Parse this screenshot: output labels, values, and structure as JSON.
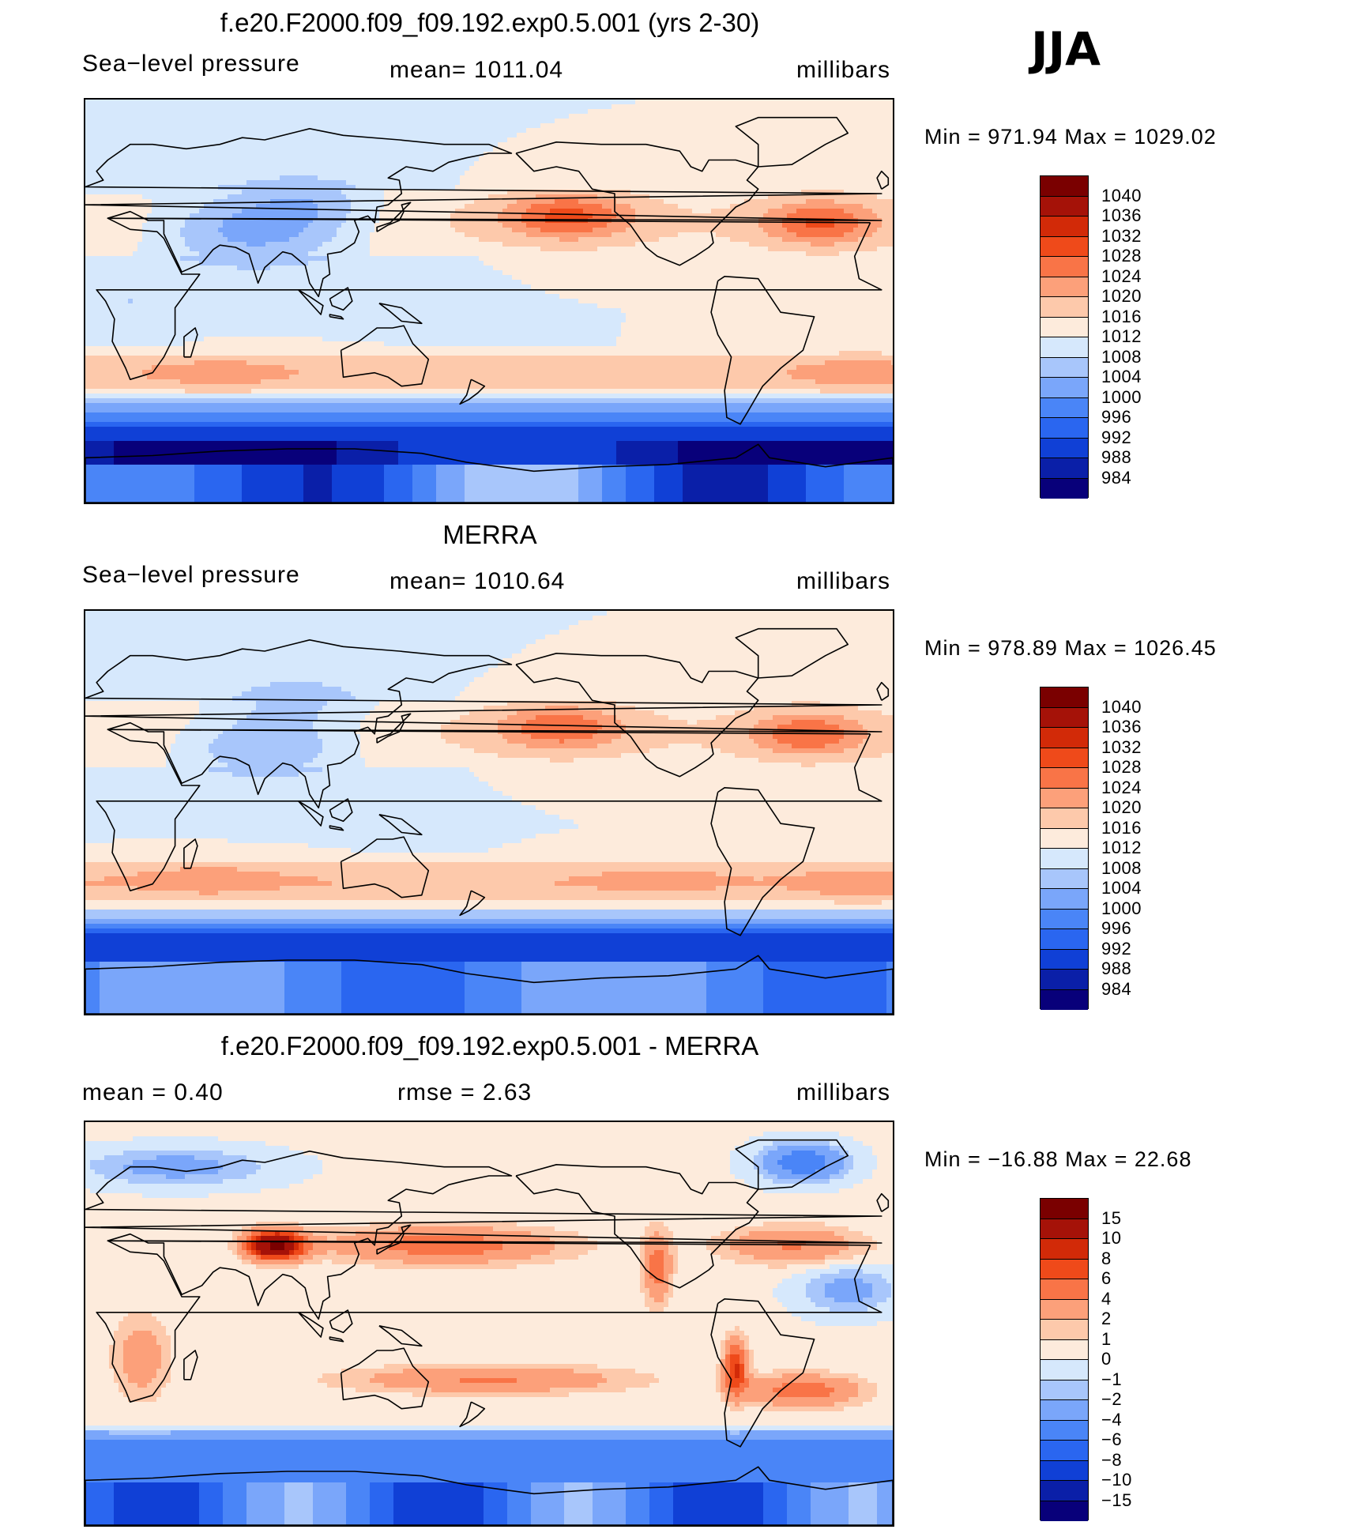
{
  "season": "JJA",
  "palette": [
    "#08007a",
    "#0a1fa8",
    "#1040d6",
    "#2a66f0",
    "#4a85f7",
    "#7aa6fa",
    "#a8c6fb",
    "#d6e8fc",
    "#fdebdc",
    "#fdc9ab",
    "#fca07a",
    "#f97447",
    "#ef4a1a",
    "#d22a08",
    "#a51208",
    "#7a0000"
  ],
  "panels": [
    {
      "title": "f.e20.F2000.f09_f09.192.exp0.5.001 (yrs 2-30)",
      "left_label": "Sea−level pressure",
      "center_label": "mean=  1011.04",
      "units": "millibars",
      "minmax": "Min  =  971.94  Max  =  1029.02",
      "colorbar_labels": [
        "1040",
        "1036",
        "1032",
        "1028",
        "1024",
        "1020",
        "1016",
        "1012",
        "1008",
        "1004",
        "1000",
        "996",
        "992",
        "988",
        "984"
      ],
      "field": "model"
    },
    {
      "title": "MERRA",
      "left_label": "Sea−level pressure",
      "center_label": "mean=  1010.64",
      "units": "millibars",
      "minmax": "Min  =  978.89  Max  =  1026.45",
      "colorbar_labels": [
        "1040",
        "1036",
        "1032",
        "1028",
        "1024",
        "1020",
        "1016",
        "1012",
        "1008",
        "1004",
        "1000",
        "996",
        "992",
        "988",
        "984"
      ],
      "field": "obs"
    },
    {
      "title": "f.e20.F2000.f09_f09.192.exp0.5.001 - MERRA",
      "left_label": "mean  =     0.40",
      "center_label": "rmse  =     2.63",
      "units": "millibars",
      "minmax": "Min  =  −16.88  Max  =     22.68",
      "colorbar_labels": [
        "15",
        "10",
        "8",
        "6",
        "4",
        "2",
        "1",
        "0",
        "−1",
        "−2",
        "−4",
        "−6",
        "−8",
        "−10",
        "−15"
      ],
      "field": "diff"
    }
  ]
}
